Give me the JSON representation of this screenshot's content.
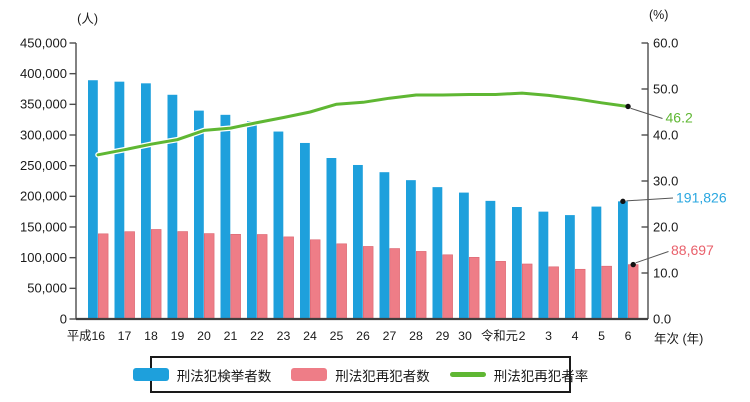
{
  "units": {
    "left": "(人)",
    "right": "(%)"
  },
  "x_axis_suffix": "年次 (年)",
  "annotations": {
    "rate": {
      "text": "46.2",
      "color": "#5FB733"
    },
    "total": {
      "text": "191,826",
      "color": "#29A7E0"
    },
    "repeat": {
      "text": "88,697",
      "color": "#E9606B"
    }
  },
  "chart_data": {
    "type": "bar+line",
    "title": "",
    "categories": [
      "平成16",
      "17",
      "18",
      "19",
      "20",
      "21",
      "22",
      "23",
      "24",
      "25",
      "26",
      "27",
      "28",
      "29",
      "30",
      "令和元",
      "2",
      "3",
      "4",
      "5",
      "6"
    ],
    "series": [
      {
        "name": "刑法犯検挙者数",
        "type": "bar",
        "axis": "left",
        "color": "#1EA0DC",
        "values": [
          389297,
          386955,
          384250,
          365577,
          339752,
          332888,
          322620,
          305631,
          287021,
          262486,
          251115,
          239355,
          226376,
          215003,
          206094,
          192607,
          182582,
          175041,
          169409,
          183269,
          191826
        ]
      },
      {
        "name": "刑法犯再犯者数",
        "type": "bar",
        "axis": "left",
        "color": "#EE7D87",
        "values": [
          138900,
          142400,
          146000,
          142600,
          139300,
          138100,
          137800,
          133900,
          129200,
          122600,
          118300,
          114900,
          110200,
          104700,
          100600,
          94000,
          89700,
          85100,
          81100,
          86100,
          88697
        ]
      },
      {
        "name": "刑法犯再犯者率",
        "type": "line",
        "axis": "right",
        "color": "#5FB733",
        "values": [
          35.7,
          36.8,
          38.0,
          39.0,
          41.0,
          41.5,
          42.7,
          43.8,
          45.0,
          46.7,
          47.1,
          48.0,
          48.7,
          48.7,
          48.8,
          48.8,
          49.1,
          48.6,
          47.9,
          47.0,
          46.2
        ]
      }
    ],
    "y_left": {
      "unit": "(人)",
      "min": 0,
      "max": 450000,
      "tick_step": 50000,
      "tick_labels": [
        "0",
        "50,000",
        "100,000",
        "150,000",
        "200,000",
        "250,000",
        "300,000",
        "350,000",
        "400,000",
        "450,000"
      ]
    },
    "y_right": {
      "unit": "(%)",
      "min": 0,
      "max": 60,
      "tick_step": 10,
      "tick_labels": [
        "0.0",
        "10.0",
        "20.0",
        "30.0",
        "40.0",
        "50.0",
        "60.0"
      ]
    },
    "legend_position": "bottom",
    "grid": false
  }
}
